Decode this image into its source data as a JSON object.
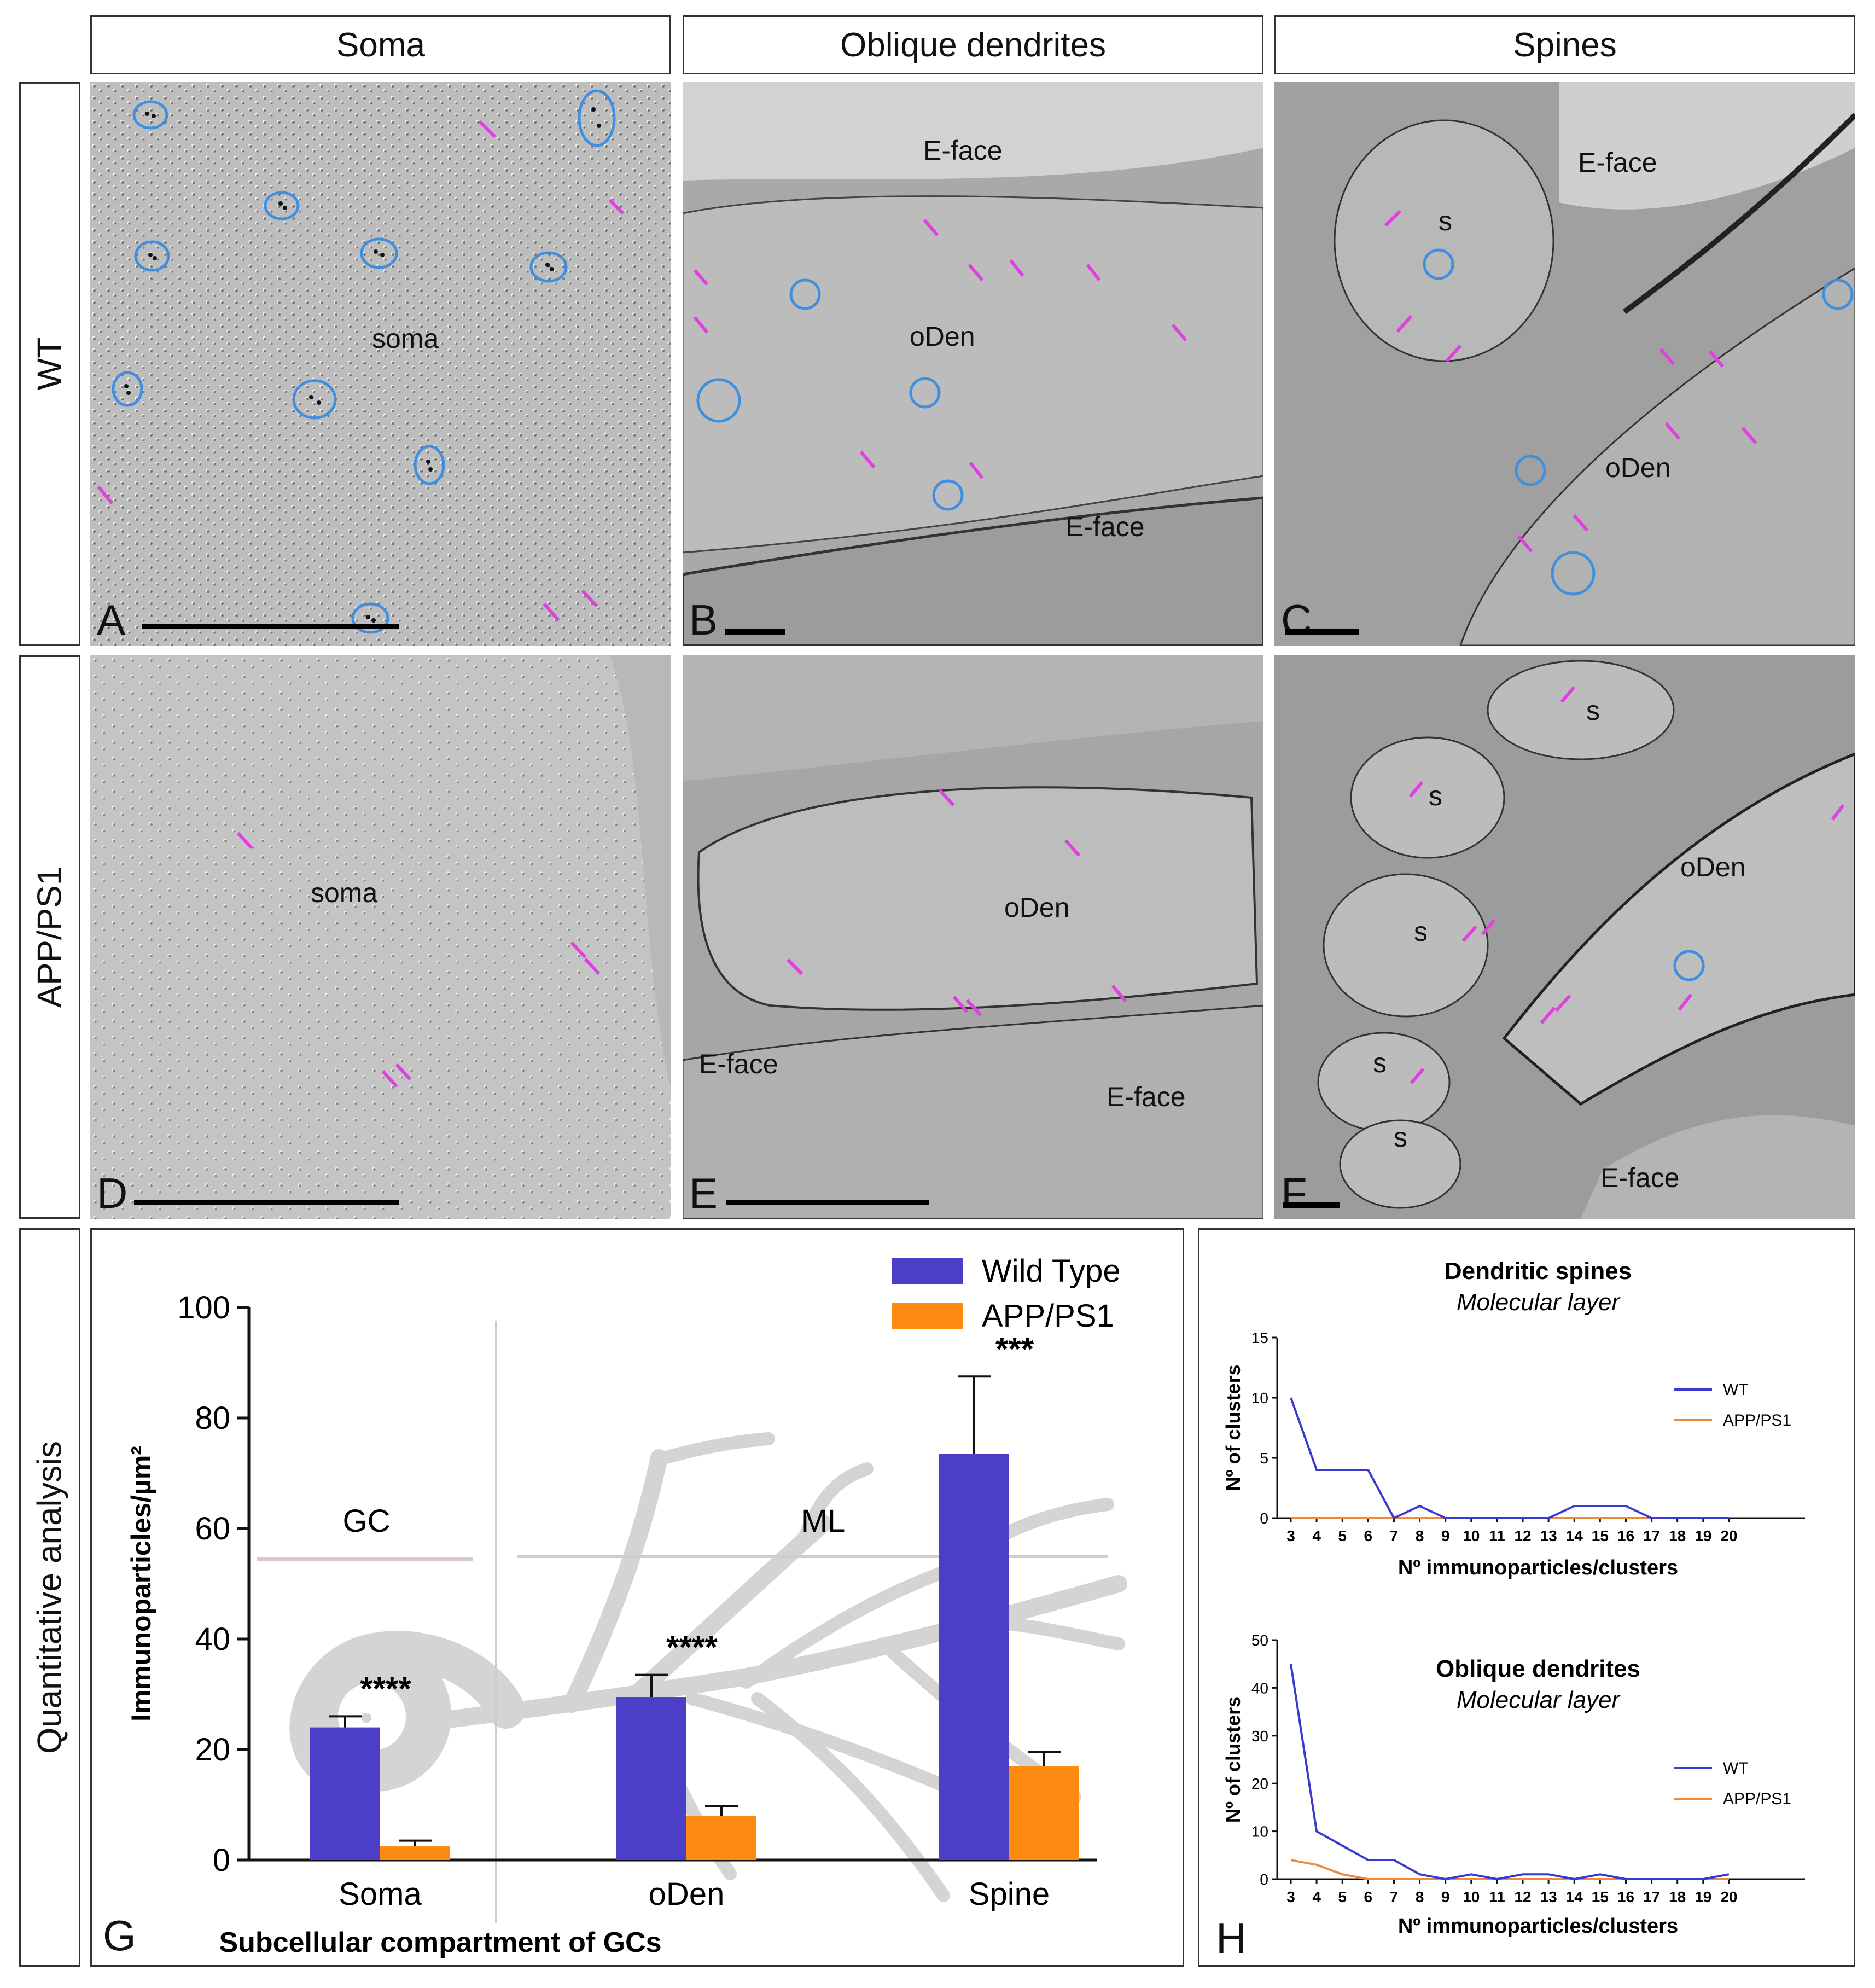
{
  "columns": [
    "Soma",
    "Oblique dendrites",
    "Spines"
  ],
  "rows": [
    "WT",
    "APP/PS1",
    "Quantitative analysis"
  ],
  "panels": {
    "A": {
      "letter": "A",
      "labels": [
        "soma"
      ]
    },
    "B": {
      "letter": "B",
      "labels": [
        "E-face",
        "oDen",
        "E-face"
      ]
    },
    "C": {
      "letter": "C",
      "labels": [
        "E-face",
        "s",
        "oDen"
      ]
    },
    "D": {
      "letter": "D",
      "labels": [
        "soma"
      ]
    },
    "E": {
      "letter": "E",
      "labels": [
        "oDen",
        "E-face",
        "E-face"
      ]
    },
    "F": {
      "letter": "F",
      "labels": [
        "s",
        "s",
        "s",
        "oDen",
        "s",
        "s",
        "E-face"
      ]
    },
    "G": {
      "letter": "G"
    },
    "H": {
      "letter": "H"
    }
  },
  "colors": {
    "wild_type": "#4a3fc6",
    "app_ps1": "#ff8a12",
    "marker_circle": "#3f8fe0",
    "arrow": "#e040e0"
  },
  "chart_data": [
    {
      "type": "bar",
      "ylabel": "Immunoparticles/µm²",
      "xlabel": "Subcellular compartment of GCs",
      "categories": [
        "Soma",
        "oDen",
        "Spine"
      ],
      "ylim": [
        0,
        100
      ],
      "yticks": [
        0,
        20,
        40,
        60,
        80,
        100
      ],
      "regions": [
        {
          "label": "GC"
        },
        {
          "label": "ML"
        }
      ],
      "series": [
        {
          "name": "Wild Type",
          "color": "#4a3fc6",
          "values": [
            24,
            29.5,
            73.5
          ],
          "errors": [
            2,
            4,
            14
          ]
        },
        {
          "name": "APP/PS1",
          "color": "#ff8a12",
          "values": [
            2.5,
            8,
            17
          ],
          "errors": [
            1,
            1.8,
            2.5
          ]
        }
      ],
      "significance": [
        "****",
        "****",
        "***"
      ],
      "legend": "top-right"
    },
    {
      "type": "line",
      "title": "Dendritic spines",
      "subtitle": "Molecular layer",
      "ylabel": "Nº of clusters",
      "xlabel": "Nº immunoparticles/clusters",
      "x": [
        3,
        4,
        5,
        6,
        7,
        8,
        9,
        10,
        11,
        12,
        13,
        14,
        15,
        16,
        17,
        18,
        19,
        20
      ],
      "ylim": [
        0,
        15
      ],
      "yticks": [
        0,
        5,
        10,
        15
      ],
      "series": [
        {
          "name": "WT",
          "color": "#3a3ad0",
          "values": [
            10,
            4,
            4,
            4,
            0,
            1,
            0,
            0,
            0,
            0,
            0,
            1,
            1,
            1,
            0,
            0,
            0,
            0
          ]
        },
        {
          "name": "APP/PS1",
          "color": "#f08a3a",
          "values": [
            0,
            0,
            0,
            0,
            0,
            0,
            0,
            0,
            0,
            0,
            0,
            0,
            0,
            0,
            0,
            0,
            0,
            0
          ]
        }
      ],
      "legend": "right"
    },
    {
      "type": "line",
      "title": "Oblique dendrites",
      "subtitle": "Molecular layer",
      "ylabel": "Nº of clusters",
      "xlabel": "Nº immunoparticles/clusters",
      "x": [
        3,
        4,
        5,
        6,
        7,
        8,
        9,
        10,
        11,
        12,
        13,
        14,
        15,
        16,
        17,
        18,
        19,
        20
      ],
      "ylim": [
        0,
        50
      ],
      "yticks": [
        0,
        10,
        20,
        30,
        40,
        50
      ],
      "series": [
        {
          "name": "WT",
          "color": "#3a3ad0",
          "values": [
            45,
            10,
            7,
            4,
            4,
            1,
            0,
            1,
            0,
            1,
            1,
            0,
            1,
            0,
            0,
            0,
            0,
            1
          ]
        },
        {
          "name": "APP/PS1",
          "color": "#f08a3a",
          "values": [
            4,
            3,
            1,
            0,
            0,
            0,
            0,
            0,
            0,
            0,
            0,
            0,
            0,
            0,
            0,
            0,
            0,
            0
          ]
        }
      ],
      "legend": "right"
    }
  ]
}
